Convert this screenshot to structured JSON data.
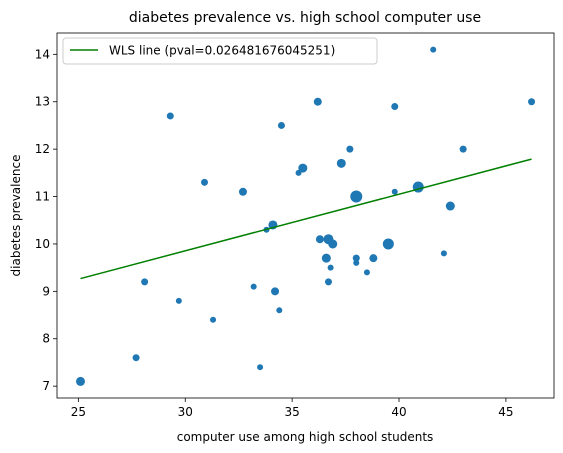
{
  "chart_data": {
    "type": "scatter",
    "title": "diabetes prevalence vs. high school computer use",
    "xlabel": "computer use among high school students",
    "ylabel": "diabetes prevalence",
    "xlim": [
      24.0,
      47.25
    ],
    "ylim": [
      6.75,
      14.45
    ],
    "xticks": [
      25,
      30,
      35,
      40,
      45
    ],
    "yticks": [
      7,
      8,
      9,
      10,
      11,
      12,
      13,
      14
    ],
    "grid": false,
    "legend": {
      "position": "top-left",
      "entries": [
        "WLS line (pval=0.026481676045251)"
      ]
    },
    "colors": {
      "points": "#1f77b4",
      "line": "#008000"
    },
    "line": {
      "x": [
        25.1,
        46.2
      ],
      "y": [
        9.27,
        11.79
      ]
    },
    "points": [
      {
        "x": 25.1,
        "y": 7.1,
        "size": 4.5
      },
      {
        "x": 27.7,
        "y": 7.6,
        "size": 3.5
      },
      {
        "x": 28.1,
        "y": 9.2,
        "size": 3.5
      },
      {
        "x": 29.3,
        "y": 12.7,
        "size": 3.5
      },
      {
        "x": 29.7,
        "y": 8.8,
        "size": 3.0
      },
      {
        "x": 30.9,
        "y": 11.3,
        "size": 3.5
      },
      {
        "x": 31.3,
        "y": 8.4,
        "size": 3.0
      },
      {
        "x": 32.7,
        "y": 11.1,
        "size": 4.0
      },
      {
        "x": 33.2,
        "y": 9.1,
        "size": 3.0
      },
      {
        "x": 33.5,
        "y": 7.4,
        "size": 3.0
      },
      {
        "x": 33.8,
        "y": 10.3,
        "size": 3.0
      },
      {
        "x": 34.1,
        "y": 10.4,
        "size": 4.5
      },
      {
        "x": 34.2,
        "y": 9.0,
        "size": 4.0
      },
      {
        "x": 34.4,
        "y": 8.6,
        "size": 3.0
      },
      {
        "x": 34.5,
        "y": 12.5,
        "size": 3.5
      },
      {
        "x": 35.3,
        "y": 11.5,
        "size": 3.0
      },
      {
        "x": 35.5,
        "y": 11.6,
        "size": 4.5
      },
      {
        "x": 36.2,
        "y": 13.0,
        "size": 4.0
      },
      {
        "x": 36.3,
        "y": 10.1,
        "size": 4.0
      },
      {
        "x": 36.6,
        "y": 9.7,
        "size": 4.5
      },
      {
        "x": 36.7,
        "y": 9.2,
        "size": 3.5
      },
      {
        "x": 36.7,
        "y": 10.1,
        "size": 5.0
      },
      {
        "x": 36.8,
        "y": 9.5,
        "size": 3.0
      },
      {
        "x": 36.9,
        "y": 10.0,
        "size": 4.5
      },
      {
        "x": 37.3,
        "y": 11.7,
        "size": 4.5
      },
      {
        "x": 37.7,
        "y": 12.0,
        "size": 3.5
      },
      {
        "x": 38.0,
        "y": 11.0,
        "size": 6.0
      },
      {
        "x": 38.0,
        "y": 9.7,
        "size": 3.5
      },
      {
        "x": 38.0,
        "y": 9.6,
        "size": 3.0
      },
      {
        "x": 38.5,
        "y": 9.4,
        "size": 3.0
      },
      {
        "x": 38.8,
        "y": 9.7,
        "size": 4.0
      },
      {
        "x": 39.5,
        "y": 10.0,
        "size": 5.5
      },
      {
        "x": 39.8,
        "y": 12.9,
        "size": 3.5
      },
      {
        "x": 39.8,
        "y": 11.1,
        "size": 3.0
      },
      {
        "x": 40.9,
        "y": 11.2,
        "size": 5.5
      },
      {
        "x": 41.6,
        "y": 14.1,
        "size": 3.0
      },
      {
        "x": 42.1,
        "y": 9.8,
        "size": 3.0
      },
      {
        "x": 42.4,
        "y": 10.8,
        "size": 4.5
      },
      {
        "x": 43.0,
        "y": 12.0,
        "size": 3.5
      },
      {
        "x": 46.2,
        "y": 13.0,
        "size": 3.5
      }
    ]
  }
}
